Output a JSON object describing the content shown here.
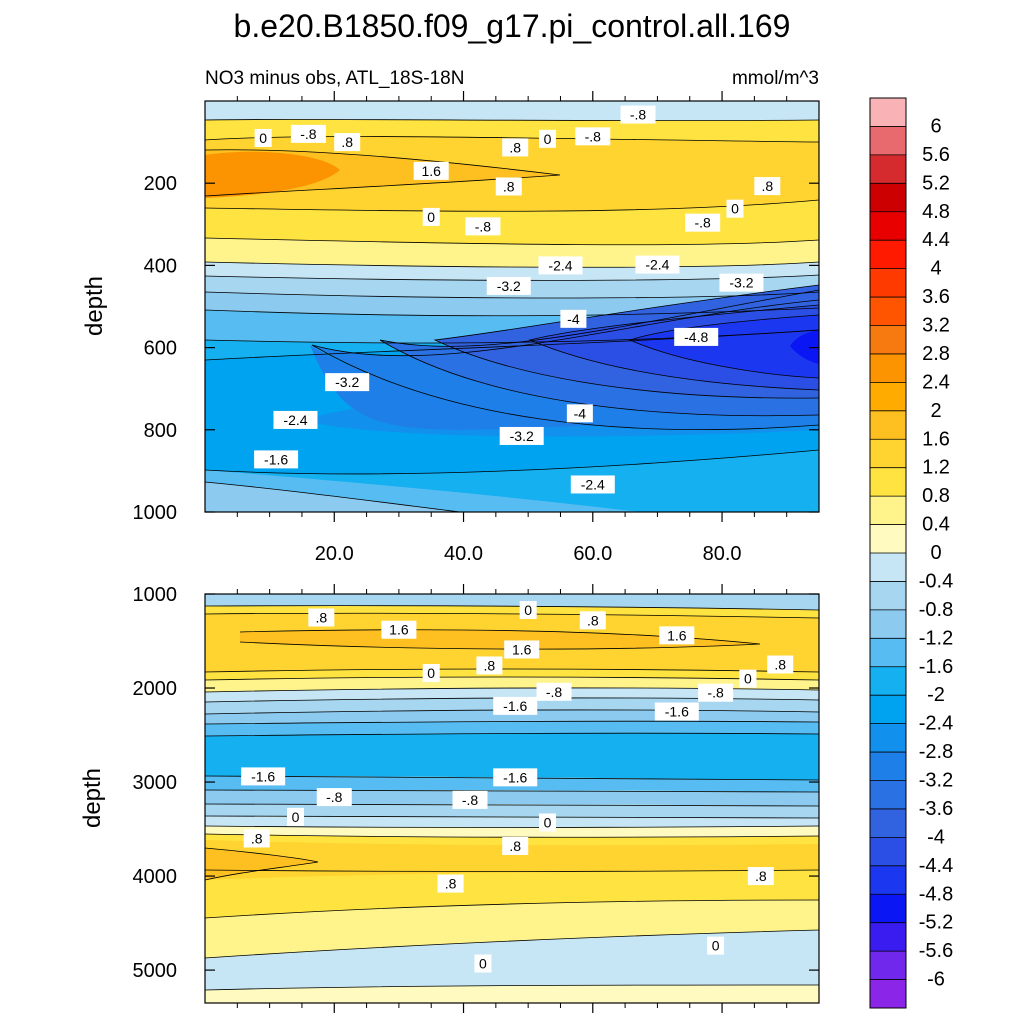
{
  "chart_data": [
    {
      "type": "contour",
      "panel": "upper",
      "title": "b.e20.B1850.f09_g17.pi_control.all.169",
      "subtitle_left": "NO3 minus obs, ATL_18S-18N",
      "units": "mmol/m^3",
      "ylabel": "depth",
      "ylim": [
        1000,
        0
      ],
      "xlim": [
        0,
        95
      ],
      "xticks": [
        "20.0",
        "40.0",
        "60.0",
        "80.0"
      ],
      "yticks": [
        "200",
        "400",
        "600",
        "800",
        "1000"
      ],
      "contour_labels": [
        {
          "text": "0",
          "x": 9,
          "y": 90
        },
        {
          "text": "-.8",
          "x": 16,
          "y": 80
        },
        {
          "text": ".8",
          "x": 22,
          "y": 100
        },
        {
          "text": "1.6",
          "x": 35,
          "y": 170
        },
        {
          "text": ".8",
          "x": 47,
          "y": 208
        },
        {
          "text": "0",
          "x": 35,
          "y": 282
        },
        {
          "text": "-.8",
          "x": 43,
          "y": 305
        },
        {
          "text": ".8",
          "x": 48,
          "y": 113
        },
        {
          "text": "0",
          "x": 53,
          "y": 92
        },
        {
          "text": "-.8",
          "x": 60,
          "y": 86
        },
        {
          "text": "-.8",
          "x": 67,
          "y": 33
        },
        {
          "text": ".8",
          "x": 87,
          "y": 207
        },
        {
          "text": "0",
          "x": 82,
          "y": 262
        },
        {
          "text": "-.8",
          "x": 77,
          "y": 296
        },
        {
          "text": "-2.4",
          "x": 55,
          "y": 400
        },
        {
          "text": "-2.4",
          "x": 70,
          "y": 398
        },
        {
          "text": "-3.2",
          "x": 47,
          "y": 450
        },
        {
          "text": "-3.2",
          "x": 83,
          "y": 442
        },
        {
          "text": "-4",
          "x": 57,
          "y": 530
        },
        {
          "text": "-4.8",
          "x": 76,
          "y": 574
        },
        {
          "text": "-3.2",
          "x": 22,
          "y": 684
        },
        {
          "text": "-2.4",
          "x": 14,
          "y": 776
        },
        {
          "text": "-4",
          "x": 58,
          "y": 760
        },
        {
          "text": "-3.2",
          "x": 49,
          "y": 815
        },
        {
          "text": "-1.6",
          "x": 11,
          "y": 872
        },
        {
          "text": "-2.4",
          "x": 60,
          "y": 933
        }
      ]
    },
    {
      "type": "contour",
      "panel": "lower",
      "ylabel": "depth",
      "ylim": [
        5350,
        1000
      ],
      "xlim": [
        0,
        95
      ],
      "yticks": [
        "1000",
        "2000",
        "3000",
        "4000",
        "5000"
      ],
      "contour_labels": [
        {
          "text": ".8",
          "x": 18,
          "y": 1250
        },
        {
          "text": "0",
          "x": 50,
          "y": 1170
        },
        {
          "text": ".8",
          "x": 60,
          "y": 1280
        },
        {
          "text": "1.6",
          "x": 30,
          "y": 1380
        },
        {
          "text": "1.6",
          "x": 49,
          "y": 1590
        },
        {
          "text": "1.6",
          "x": 73,
          "y": 1440
        },
        {
          "text": ".8",
          "x": 44,
          "y": 1760
        },
        {
          "text": "0",
          "x": 35,
          "y": 1840
        },
        {
          "text": ".8",
          "x": 89,
          "y": 1750
        },
        {
          "text": "0",
          "x": 84,
          "y": 1900
        },
        {
          "text": "-.8",
          "x": 54,
          "y": 2040
        },
        {
          "text": "-.8",
          "x": 79,
          "y": 2050
        },
        {
          "text": "-1.6",
          "x": 48,
          "y": 2190
        },
        {
          "text": "-1.6",
          "x": 73,
          "y": 2250
        },
        {
          "text": "-1.6",
          "x": 9,
          "y": 2940
        },
        {
          "text": "-1.6",
          "x": 48,
          "y": 2950
        },
        {
          "text": "-.8",
          "x": 20,
          "y": 3160
        },
        {
          "text": "-.8",
          "x": 41,
          "y": 3190
        },
        {
          "text": "0",
          "x": 14,
          "y": 3370
        },
        {
          "text": "0",
          "x": 53,
          "y": 3430
        },
        {
          "text": ".8",
          "x": 8,
          "y": 3600
        },
        {
          "text": ".8",
          "x": 48,
          "y": 3680
        },
        {
          "text": ".8",
          "x": 38,
          "y": 4080
        },
        {
          "text": ".8",
          "x": 86,
          "y": 4000
        },
        {
          "text": "0",
          "x": 79,
          "y": 4740
        },
        {
          "text": "0",
          "x": 43,
          "y": 4930
        }
      ]
    }
  ],
  "colorbar": {
    "labels": [
      "6",
      "5.6",
      "5.2",
      "4.8",
      "4.4",
      "4",
      "3.6",
      "3.2",
      "2.8",
      "2.4",
      "2",
      "1.6",
      "1.2",
      "0.8",
      "0.4",
      "0",
      "-0.4",
      "-0.8",
      "-1.2",
      "-1.6",
      "-2",
      "-2.4",
      "-2.8",
      "-3.2",
      "-3.6",
      "-4",
      "-4.4",
      "-4.8",
      "-5.2",
      "-5.6",
      "-6"
    ],
    "colors": [
      "#f9b3b6",
      "#e86a6e",
      "#d52b2e",
      "#cc0000",
      "#e80000",
      "#ff1a00",
      "#ff3a00",
      "#ff5500",
      "#f77a10",
      "#fb9400",
      "#ffab00",
      "#fec020",
      "#ffd430",
      "#ffe441",
      "#fff48c",
      "#fffbc0",
      "#c6e6f5",
      "#a6d6f0",
      "#8ccaf0",
      "#56bcf2",
      "#14b0f0",
      "#00a3f0",
      "#1191ed",
      "#1f7fe8",
      "#2a71e3",
      "#3162e0",
      "#2b4fe4",
      "#1c37f0",
      "#0b16f4",
      "#3b1cf0",
      "#7028ed",
      "#8b26e8"
    ]
  }
}
